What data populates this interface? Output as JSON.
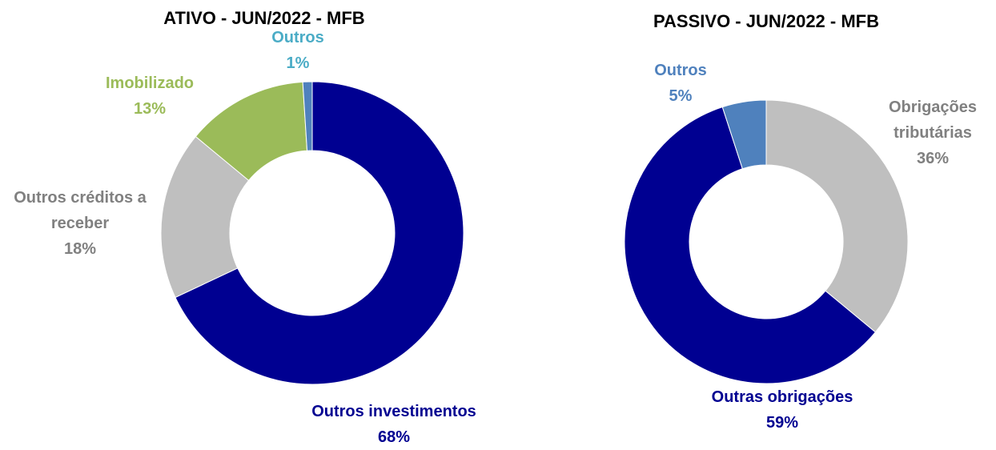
{
  "chart_data": [
    {
      "type": "donut",
      "title": "ATIVO - JUN/2022 - MFB",
      "categories": [
        "Outros investimentos",
        "Outros créditos a receber",
        "Imobilizado",
        "Outros"
      ],
      "values": [
        68,
        18,
        13,
        1
      ],
      "value_labels": [
        "68%",
        "18%",
        "13%",
        "1%"
      ],
      "colors": [
        "#000091",
        "#bfbfbf",
        "#9bbb59",
        "#4f81bd"
      ],
      "label_colors": [
        "#000091",
        "#808080",
        "#9bbb59",
        "#4bacc6"
      ]
    },
    {
      "type": "donut",
      "title": "PASSIVO - JUN/2022 - MFB",
      "categories": [
        "Obrigações tributárias",
        "Outras obrigações",
        "Outros"
      ],
      "values": [
        36,
        59,
        5
      ],
      "value_labels": [
        "36%",
        "59%",
        "5%"
      ],
      "colors": [
        "#bfbfbf",
        "#000091",
        "#4f81bd"
      ],
      "label_colors": [
        "#808080",
        "#000091",
        "#4f81bd"
      ]
    }
  ]
}
